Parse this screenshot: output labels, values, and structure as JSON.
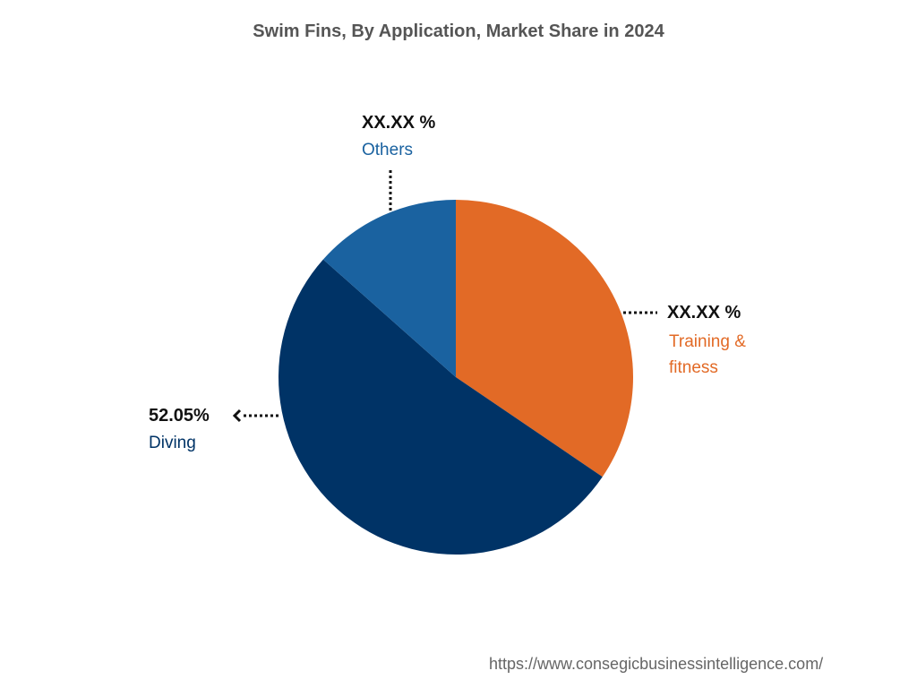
{
  "chart_data": {
    "type": "pie",
    "title": "Swim Fins, By Application, Market Share in 2024",
    "slices": [
      {
        "label": "Training & fitness",
        "value_label": "XX.XX %",
        "value": 34.5,
        "color": "#E26A26"
      },
      {
        "label": "Diving",
        "value_label": "52.05%",
        "value": 52.05,
        "color": "#003366"
      },
      {
        "label": "Others",
        "value_label": "XX.XX %",
        "value": 13.45,
        "color": "#1A62A0"
      }
    ],
    "start_angle_deg": 0,
    "direction": "clockwise"
  },
  "labels": {
    "others_value": "XX.XX %",
    "others_name": "Others",
    "training_value": "XX.XX %",
    "training_name_line1": "Training &",
    "training_name_line2": "fitness",
    "diving_value": "52.05%",
    "diving_name": "Diving"
  },
  "footer": {
    "url": "https://www.consegicbusinessintelligence.com/"
  }
}
